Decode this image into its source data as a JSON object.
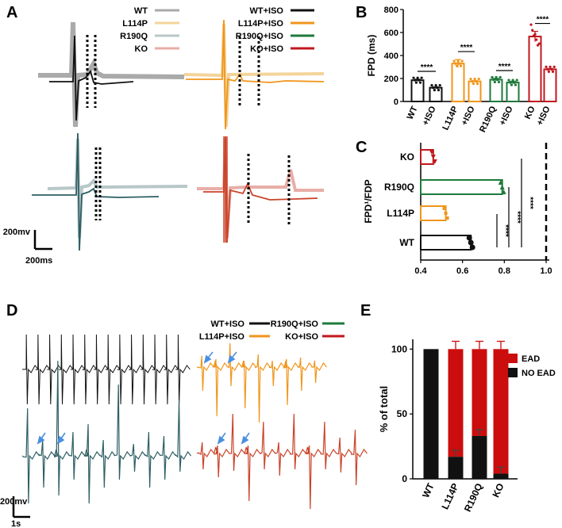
{
  "panels": {
    "A": "A",
    "B": "B",
    "C": "C",
    "D": "D",
    "E": "E"
  },
  "colors": {
    "wt": "#aaaaaa",
    "l114p": "#f3d49a",
    "r190q": "#b8c7c8",
    "ko": "#e7aea7",
    "wt_iso": "#111111",
    "l114p_iso": "#f0961c",
    "r190q_iso": "#1e7a3c",
    "ko_iso": "#c0171d",
    "teal": "#2e5f63",
    "rust": "#c9442a",
    "ead": "#cc0d0d",
    "noead": "#111111",
    "arrow": "#4a8fe0"
  },
  "legend_a": [
    {
      "label": "WT",
      "key": "wt"
    },
    {
      "label": "L114P",
      "key": "l114p"
    },
    {
      "label": "R190Q",
      "key": "r190q"
    },
    {
      "label": "KO",
      "key": "ko"
    },
    {
      "label": "WT+ISO",
      "key": "wt_iso"
    },
    {
      "label": "L114P+ISO",
      "key": "l114p_iso"
    },
    {
      "label": "R190Q+ISO",
      "key": "r190q_iso"
    },
    {
      "label": "KO+ISO",
      "key": "ko_iso"
    }
  ],
  "legend_d": [
    {
      "label": "WT+ISO",
      "key": "wt_iso"
    },
    {
      "label": "L114P+ISO",
      "key": "l114p_iso"
    },
    {
      "label": "R190Q+ISO",
      "key": "r190q_iso"
    },
    {
      "label": "KO+ISO",
      "key": "ko_iso"
    }
  ],
  "scalebars": {
    "a_v": "200mv",
    "a_t": "200ms",
    "d_v": "200mv",
    "d_t": "1s"
  },
  "chart_data": [
    {
      "id": "B",
      "type": "bar",
      "ylabel": "FPD (ms)",
      "ylim": [
        0,
        800
      ],
      "yticks": [
        0,
        200,
        400,
        600,
        800
      ],
      "categories": [
        "WT",
        "+ISO",
        "L114P",
        "+ISO",
        "R190Q",
        "+ISO",
        "KO",
        "+ISO"
      ],
      "values": [
        185,
        120,
        330,
        175,
        190,
        165,
        565,
        280
      ],
      "errors": [
        8,
        6,
        35,
        6,
        10,
        10,
        45,
        6
      ],
      "significance": [
        "****",
        "****",
        "****",
        "****"
      ]
    },
    {
      "id": "C",
      "type": "bar",
      "orientation": "horizontal",
      "ylabel": "FPD¹/FDP",
      "xlim": [
        0.4,
        1.0
      ],
      "xticks": [
        "0.4",
        "0.6",
        "0.8",
        "1.0"
      ],
      "categories": [
        "KO",
        "R190Q",
        "L114P",
        "WT"
      ],
      "values": [
        0.46,
        0.79,
        0.52,
        0.64
      ],
      "significance": [
        "****",
        "****",
        "****"
      ],
      "reference_line": 1.0
    },
    {
      "id": "E",
      "type": "bar",
      "stacked": true,
      "ylabel": "% of total",
      "ylim": [
        0,
        100
      ],
      "yticks": [
        "0",
        "50",
        "100"
      ],
      "categories": [
        "WT",
        "L114P",
        "R190Q",
        "KO"
      ],
      "series": [
        {
          "name": "NO EAD",
          "values": [
            100,
            17,
            33,
            4
          ],
          "errors": [
            0,
            5,
            5,
            5
          ]
        },
        {
          "name": "EAD",
          "values": [
            0,
            83,
            67,
            96
          ],
          "errors": [
            0,
            6,
            6,
            6
          ]
        }
      ]
    }
  ]
}
